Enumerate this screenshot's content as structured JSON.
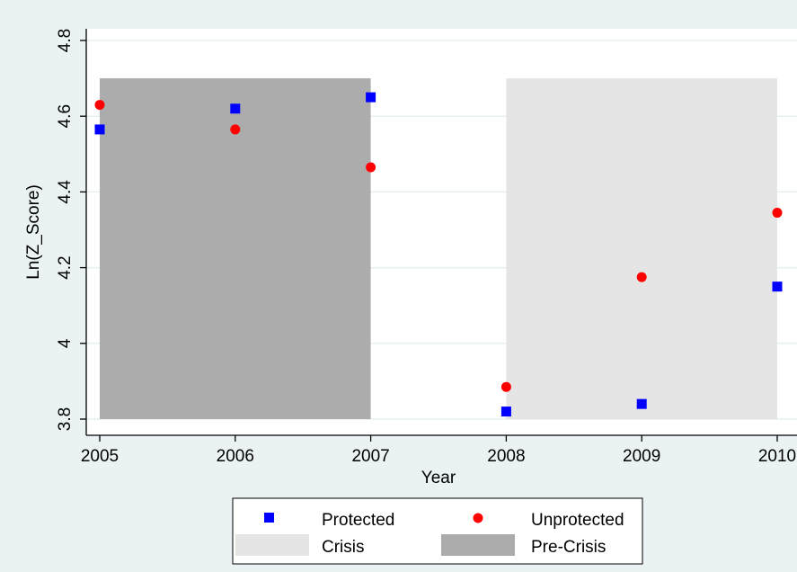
{
  "chart_data": {
    "type": "scatter",
    "title": "",
    "xlabel": "Year",
    "ylabel": "Ln(Z_Score)",
    "xlim": [
      2005,
      2010
    ],
    "ylim": [
      3.8,
      4.8
    ],
    "x_ticks": [
      "2005",
      "2006",
      "2007",
      "2008",
      "2009",
      "2010"
    ],
    "y_ticks": [
      "3.8",
      "4",
      "4.2",
      "4.4",
      "4.6",
      "4.8"
    ],
    "grid": true,
    "shaded_regions": [
      {
        "name": "Pre-Crisis",
        "x_start": 2005,
        "x_end": 2007,
        "y_start": 3.8,
        "y_end": 4.7,
        "color": "#acacac"
      },
      {
        "name": "Crisis",
        "x_start": 2008,
        "x_end": 2010,
        "y_start": 3.8,
        "y_end": 4.7,
        "color": "#e5e5e5"
      }
    ],
    "series": [
      {
        "name": "Protected",
        "marker": "square",
        "color": "#0000ff",
        "x": [
          2005,
          2006,
          2007,
          2008,
          2009,
          2010
        ],
        "y": [
          4.565,
          4.62,
          4.65,
          3.82,
          3.84,
          4.15
        ]
      },
      {
        "name": "Unprotected",
        "marker": "circle",
        "color": "#ff0000",
        "x": [
          2005,
          2006,
          2007,
          2008,
          2009,
          2010
        ],
        "y": [
          4.63,
          4.565,
          4.465,
          3.885,
          4.175,
          4.345
        ]
      }
    ],
    "legend": {
      "position": "bottom",
      "entries": [
        "Protected",
        "Unprotected",
        "Crisis",
        "Pre-Crisis"
      ]
    }
  }
}
